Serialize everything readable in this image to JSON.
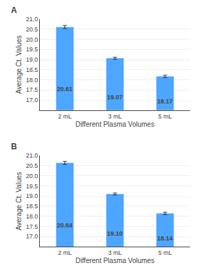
{
  "chart_data": [
    {
      "type": "bar",
      "annotations": [
        "A"
      ],
      "categories": [
        "2 mL",
        "3 mL",
        "5 mL"
      ],
      "values": [
        20.61,
        19.07,
        18.17
      ],
      "value_labels": [
        "20.61",
        "19.07",
        "18.17"
      ],
      "errors": [
        0.08,
        0.05,
        0.06
      ],
      "color": "#4DA6FF",
      "xlabel": "Different Plasma Volumes",
      "ylabel": "Average Ct. Values",
      "ylim": [
        16.5,
        21.0
      ],
      "yticks": [
        {
          "value": 17.0,
          "label": "17.0"
        },
        17.5,
        {
          "value": 18.0,
          "label": "18.0"
        },
        18.5,
        {
          "value": 19.0,
          "label": "19.0"
        },
        19.5,
        {
          "value": 20.0,
          "label": "20.0"
        },
        20.5,
        {
          "value": 21.0,
          "label": "21.0"
        }
      ],
      "data_labels": true,
      "grid": true
    },
    {
      "type": "bar",
      "annotations": [
        "B"
      ],
      "categories": [
        "2 mL",
        "3 mL",
        "5 mL"
      ],
      "values": [
        20.64,
        19.1,
        18.14
      ],
      "value_labels": [
        "20.64",
        "19.10",
        "18.14"
      ],
      "errors": [
        0.08,
        0.05,
        0.06
      ],
      "color": "#4DA6FF",
      "xlabel": "Different Plasma Volumes",
      "ylabel": "Average Ct. Values",
      "ylim": [
        16.5,
        21.0
      ],
      "yticks": [
        {
          "value": 17.0,
          "label": "17.0"
        },
        17.5,
        {
          "value": 18.0,
          "label": "18.0"
        },
        18.5,
        {
          "value": 19.0,
          "label": "19.0"
        },
        19.5,
        {
          "value": 20.0,
          "label": "20.0"
        },
        20.5,
        {
          "value": 21.0,
          "label": "21.0"
        }
      ],
      "data_labels": true,
      "grid": true
    }
  ]
}
